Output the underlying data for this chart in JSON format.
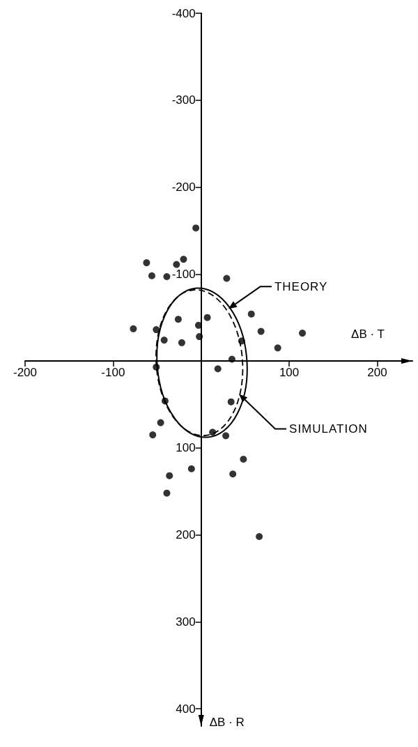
{
  "chart_data": {
    "type": "scatter",
    "xlabel": "ΔB · T",
    "ylabel": "ΔB · R",
    "xlim": [
      -200,
      240
    ],
    "ylim": [
      420,
      -400
    ],
    "xticks": [
      -200,
      -100,
      {
        "value": 0,
        "label": null
      },
      100,
      200
    ],
    "yticks": [
      -400,
      -300,
      -200,
      -100,
      {
        "value": 0,
        "label": null
      },
      100,
      200,
      300,
      400
    ],
    "marker": "circle",
    "series": [
      {
        "color": "#000000",
        "x": [
          -6,
          -62,
          -20,
          -28,
          -56,
          -39,
          29,
          57,
          -26,
          7,
          -3,
          -77,
          -51,
          68,
          115,
          -2,
          -42,
          -22,
          46,
          87,
          35,
          -51,
          19,
          -41,
          34,
          -46,
          -55,
          13,
          28,
          48,
          -11,
          -36,
          36,
          -39,
          66
        ],
        "values": [
          -153,
          -113,
          -117,
          -111,
          -98,
          -97,
          -95,
          -54,
          -48,
          -50,
          -41,
          -37,
          -36,
          -34,
          -32,
          -28,
          -24,
          -21,
          -23,
          -15,
          -2,
          7,
          9,
          46,
          47,
          71,
          85,
          82,
          86,
          113,
          124,
          132,
          130,
          152,
          202
        ]
      }
    ],
    "annotations": [
      "THEORY",
      "SIMULATION"
    ]
  }
}
